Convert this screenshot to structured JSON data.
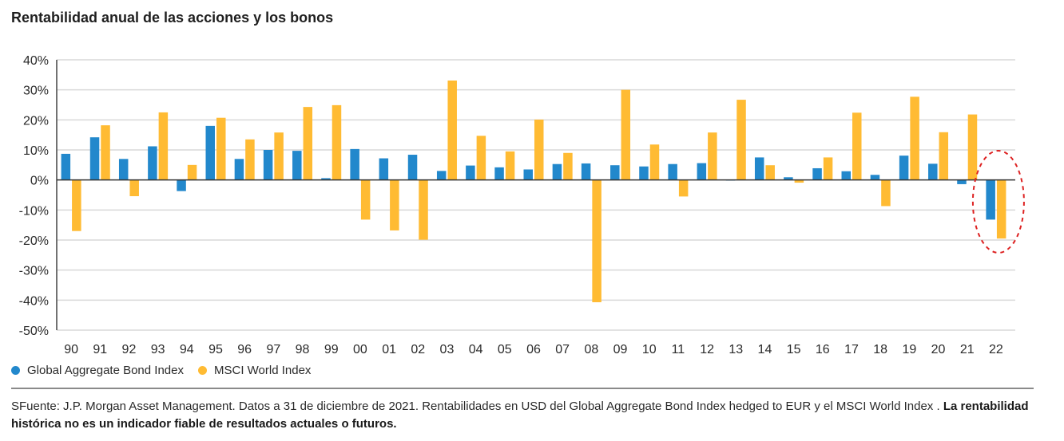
{
  "chart_data": {
    "type": "bar",
    "title": "Rentabilidad anual de las acciones y los bonos",
    "xlabel": "",
    "ylabel": "",
    "ylim": [
      -50,
      40
    ],
    "yticks": [
      40,
      30,
      20,
      10,
      0,
      -10,
      -20,
      -30,
      -40,
      -50
    ],
    "ytick_labels": [
      "40%",
      "30%",
      "20%",
      "10%",
      "0%",
      "-10%",
      "-20%",
      "-30%",
      "-40%",
      "-50%"
    ],
    "grid": true,
    "legend_position": "bottom-left",
    "categories": [
      "90",
      "91",
      "92",
      "93",
      "94",
      "95",
      "96",
      "97",
      "98",
      "99",
      "00",
      "01",
      "02",
      "03",
      "04",
      "05",
      "06",
      "07",
      "08",
      "09",
      "10",
      "11",
      "12",
      "13",
      "14",
      "15",
      "16",
      "17",
      "18",
      "19",
      "20",
      "21",
      "22"
    ],
    "series": [
      {
        "name": "Global Aggregate Bond Index",
        "color": "#2288cc",
        "values": [
          8.7,
          14.2,
          7.0,
          11.2,
          -3.7,
          18.0,
          7.0,
          10.0,
          9.7,
          0.6,
          10.3,
          7.2,
          8.4,
          3.0,
          4.8,
          4.2,
          3.5,
          5.3,
          5.5,
          4.9,
          4.5,
          5.3,
          5.6,
          0.0,
          7.5,
          0.9,
          3.9,
          2.9,
          1.7,
          8.1,
          5.4,
          -1.4,
          -13.2
        ]
      },
      {
        "name": "MSCI World Index",
        "color": "#ffbb33",
        "values": [
          -17.0,
          18.2,
          -5.4,
          22.5,
          5.0,
          20.7,
          13.5,
          15.8,
          24.3,
          24.9,
          -13.2,
          -16.8,
          -19.9,
          33.1,
          14.7,
          9.5,
          20.1,
          9.0,
          -40.7,
          30.0,
          11.8,
          -5.5,
          15.8,
          26.7,
          4.9,
          -0.9,
          7.5,
          22.4,
          -8.7,
          27.7,
          15.9,
          21.8,
          -19.5
        ]
      }
    ],
    "annotations": [
      {
        "type": "dashed-ellipse",
        "target_category": "22",
        "color": "#dd2222"
      }
    ]
  },
  "legend": {
    "items": [
      {
        "label": "Global Aggregate Bond Index",
        "color": "#2288cc"
      },
      {
        "label": "MSCI World Index",
        "color": "#ffbb33"
      }
    ]
  },
  "source": {
    "text": "SFuente: J.P. Morgan Asset Management. Datos a 31 de diciembre de 2021. Rentabilidades en USD del Global Aggregate Bond Index hedged to EUR y el MSCI World Index . ",
    "bold": "La rentabilidad histórica no es un indicador fiable de resultados actuales o futuros."
  }
}
